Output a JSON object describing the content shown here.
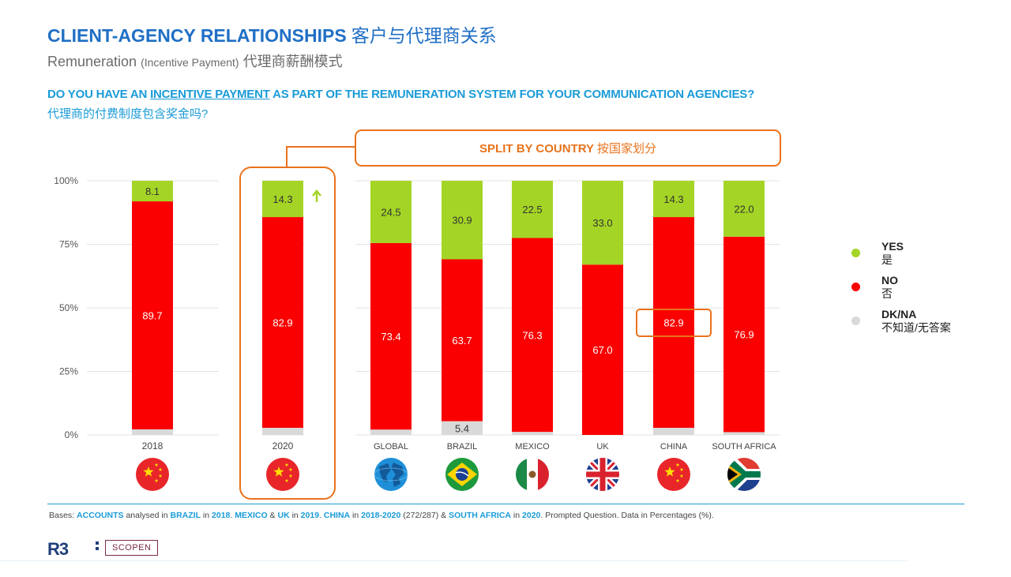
{
  "header": {
    "title_en": "CLIENT-AGENCY  RELATIONSHIPS",
    "title_cn": "客户与代理商关系",
    "subtitle_main": "Remuneration",
    "subtitle_paren": "(Incentive Payment)",
    "subtitle_cn": "代理商薪酬模式",
    "question_pre": "DO YOU HAVE AN ",
    "question_underlined": "INCENTIVE PAYMENT",
    "question_post": " AS PART OF THE REMUNERATION SYSTEM FOR YOUR COMMUNICATION AGENCIES?",
    "question_cn": "代理商的付费制度包含奖金吗?"
  },
  "callout": {
    "label_en": "SPLIT BY COUNTRY",
    "label_cn": "按国家划分"
  },
  "colors": {
    "yes": "#a4d526",
    "no": "#fa0000",
    "dk": "#d9d9d9",
    "accent": "#e8731c",
    "grid": "#e3e3e3"
  },
  "chart_data": {
    "type": "bar",
    "stacked": true,
    "ylim": [
      0,
      100
    ],
    "yticks": [
      "0%",
      "25%",
      "50%",
      "75%",
      "100%"
    ],
    "categories": [
      "2018",
      "2020",
      "GLOBAL",
      "BRAZIL",
      "MEXICO",
      "UK",
      "CHINA",
      "SOUTH AFRICA"
    ],
    "series": [
      {
        "name": "DK/NA",
        "values": [
          2.2,
          2.8,
          2.1,
          5.4,
          1.2,
          0,
          2.8,
          1.1
        ],
        "labels": [
          "",
          "",
          "",
          "5.4",
          "",
          "",
          "",
          ""
        ]
      },
      {
        "name": "NO",
        "values": [
          89.7,
          82.9,
          73.4,
          63.7,
          76.3,
          67.0,
          82.9,
          76.9
        ],
        "labels": [
          "89.7",
          "82.9",
          "73.4",
          "63.7",
          "76.3",
          "67.0",
          "82.9",
          "76.9"
        ]
      },
      {
        "name": "YES",
        "values": [
          8.1,
          14.3,
          24.5,
          30.9,
          22.5,
          33.0,
          14.3,
          22.0
        ],
        "labels": [
          "8.1",
          "14.3",
          "24.5",
          "30.9",
          "22.5",
          "33.0",
          "14.3",
          "22.0"
        ]
      }
    ],
    "flags": [
      "china-flag-icon",
      "china-flag-icon",
      "globe-icon",
      "brazil-flag-icon",
      "mexico-flag-icon",
      "uk-flag-icon",
      "china-flag-icon",
      "south-africa-flag-icon"
    ],
    "trend_arrow": "up-arrow-icon"
  },
  "legend": [
    {
      "en": "YES",
      "cn": "是",
      "color": "#a4d526"
    },
    {
      "en": "NO",
      "cn": "否",
      "color": "#fa0000"
    },
    {
      "en": "DK/NA",
      "cn": "不知道/无答案",
      "color": "#d9d9d9"
    }
  ],
  "footnote": {
    "t1": "Bases: ",
    "b1": "ACCOUNTS",
    "t2": " analysed in ",
    "b2": "BRAZIL",
    "t3": " in ",
    "b3": "2018",
    "t4": ". ",
    "b4": "MEXICO",
    "t5": " & ",
    "b5": "UK",
    "t6": " in ",
    "b6": "2019",
    "t7": ". ",
    "b7": "CHINA",
    "t8": " in ",
    "b8": "2018-2020",
    "t9": " (272/287) & ",
    "b9": "SOUTH AFRICA",
    "t10": " in ",
    "b10": "2020",
    "t11": ". Prompted Question. Data in Percentages (%)."
  },
  "logos": {
    "r3": "R3",
    "scopen": "SCOPEN"
  }
}
